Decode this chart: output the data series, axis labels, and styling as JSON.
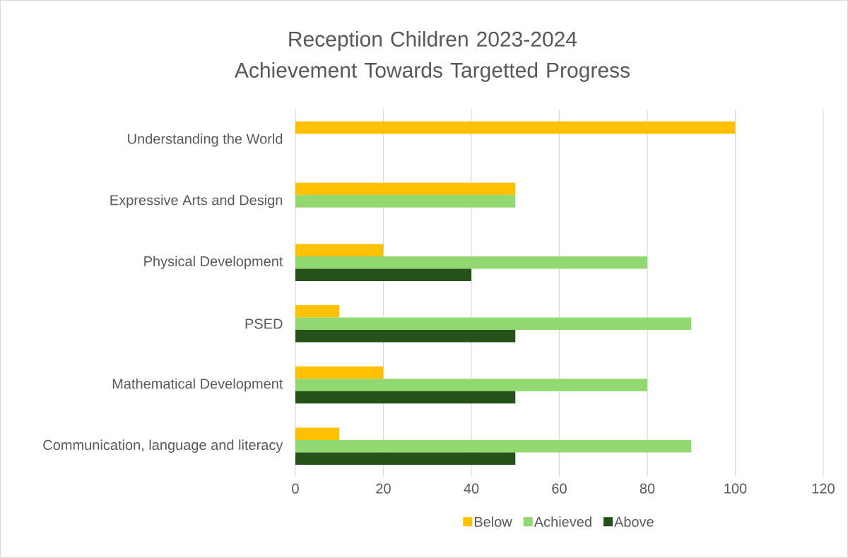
{
  "chart_data": {
    "type": "bar",
    "orientation": "horizontal",
    "title": "Reception Children 2023-2024 Achievement Towards Targetted Progress",
    "categories": [
      "Understanding the World",
      "Expressive Arts and Design",
      "Physical Development",
      "PSED",
      "Mathematical Development",
      "Communication, language and literacy"
    ],
    "series": [
      {
        "name": "Below",
        "color": "#ffc000",
        "values": [
          100,
          50,
          20,
          10,
          20,
          10
        ]
      },
      {
        "name": "Achieved",
        "color": "#92d870",
        "values": [
          null,
          50,
          80,
          90,
          80,
          90
        ]
      },
      {
        "name": "Above",
        "color": "#255219",
        "values": [
          null,
          null,
          40,
          50,
          50,
          50
        ]
      }
    ],
    "xlim": [
      0,
      120
    ],
    "xticks": [
      0,
      20,
      40,
      60,
      80,
      100,
      120
    ],
    "grid": "x",
    "legend": "bottom"
  }
}
